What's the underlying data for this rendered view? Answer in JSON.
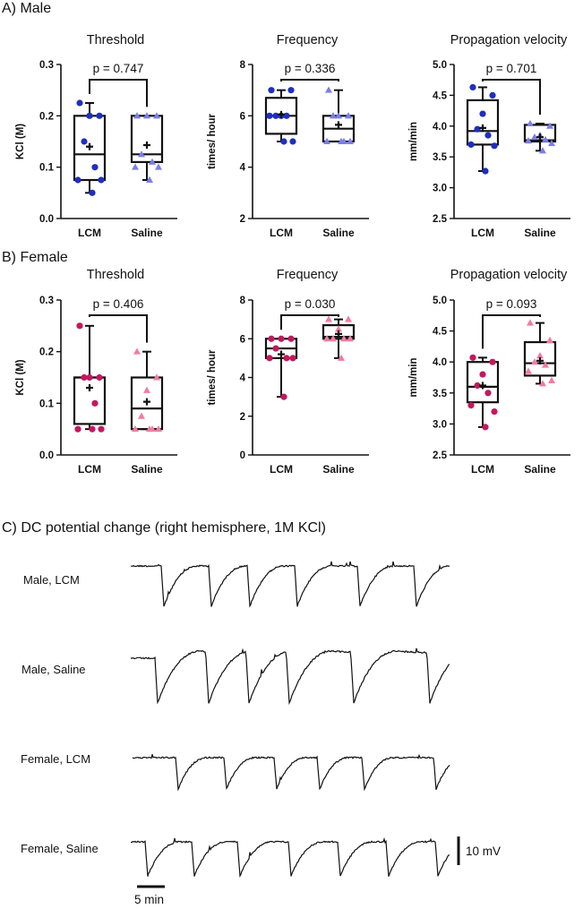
{
  "sections": {
    "a": "A) Male",
    "b": "B) Female",
    "c": "C) DC potential change (right hemisphere, 1M KCl)"
  },
  "colors": {
    "male_circle": "#1f2fbf",
    "male_triangle": "#7b7fe6",
    "female_circle": "#c3185e",
    "female_triangle": "#f07ca3",
    "line": "#111111"
  },
  "chart_data": [
    {
      "id": "male-threshold",
      "type": "boxplot",
      "section": "A) Male",
      "title": "Threshold",
      "ylabel": "KCl (M)",
      "ylim": [
        0,
        0.3
      ],
      "yticks": [
        0.0,
        0.1,
        0.2,
        0.3
      ],
      "ytick_labels": [
        "0.0",
        "0.1",
        "0.2",
        "0.3"
      ],
      "categories": [
        "LCM",
        "Saline"
      ],
      "p_value": "p = 0.747",
      "groups": [
        {
          "name": "LCM",
          "min": 0.05,
          "q1": 0.075,
          "median": 0.125,
          "q3": 0.2,
          "max": 0.225,
          "mean": 0.14,
          "points": [
            0.225,
            0.2,
            0.2,
            0.15,
            0.1,
            0.075,
            0.075,
            0.05
          ],
          "marker": "circle"
        },
        {
          "name": "Saline",
          "min": 0.075,
          "q1": 0.11,
          "median": 0.125,
          "q3": 0.2,
          "max": 0.2,
          "mean": 0.143,
          "points": [
            0.2,
            0.2,
            0.2,
            0.125,
            0.11,
            0.1,
            0.1,
            0.075
          ],
          "marker": "triangle"
        }
      ]
    },
    {
      "id": "male-frequency",
      "type": "boxplot",
      "section": "A) Male",
      "title": "Frequency",
      "ylabel": "times/ hour",
      "ylim": [
        2,
        8
      ],
      "yticks": [
        2,
        4,
        6,
        8
      ],
      "ytick_labels": [
        "2",
        "4",
        "6",
        "8"
      ],
      "categories": [
        "LCM",
        "Saline"
      ],
      "p_value": "p = 0.336",
      "groups": [
        {
          "name": "LCM",
          "min": 5,
          "q1": 5.3,
          "median": 6,
          "q3": 6.7,
          "max": 7,
          "mean": 6.05,
          "points": [
            7,
            7,
            6,
            6,
            6,
            6,
            5,
            5
          ],
          "marker": "circle"
        },
        {
          "name": "Saline",
          "min": 5,
          "q1": 5,
          "median": 5.5,
          "q3": 6,
          "max": 7,
          "mean": 5.65,
          "points": [
            7,
            6,
            6,
            6,
            5,
            5,
            5,
            5
          ],
          "marker": "triangle"
        }
      ]
    },
    {
      "id": "male-velocity",
      "type": "boxplot",
      "section": "A) Male",
      "title": "Propagation velocity",
      "ylabel": "mm/min",
      "ylim": [
        2.5,
        5.0
      ],
      "yticks": [
        2.5,
        3.0,
        3.5,
        4.0,
        4.5,
        5.0
      ],
      "ytick_labels": [
        "2.5",
        "3.0",
        "3.5",
        "4.0",
        "4.5",
        "5.0"
      ],
      "categories": [
        "LCM",
        "Saline"
      ],
      "p_value": "p = 0.701",
      "groups": [
        {
          "name": "LCM",
          "min": 3.27,
          "q1": 3.7,
          "median": 3.92,
          "q3": 4.42,
          "max": 4.63,
          "mean": 3.97,
          "points": [
            4.63,
            4.5,
            4.2,
            3.95,
            3.85,
            3.7,
            3.68,
            3.27
          ],
          "marker": "circle"
        },
        {
          "name": "Saline",
          "min": 3.6,
          "q1": 3.75,
          "median": 3.77,
          "q3": 4.02,
          "max": 4.04,
          "mean": 3.82,
          "points": [
            4.04,
            4.0,
            3.85,
            3.82,
            3.78,
            3.76,
            3.72,
            3.6
          ],
          "marker": "triangle"
        }
      ]
    },
    {
      "id": "female-threshold",
      "type": "boxplot",
      "section": "B) Female",
      "title": "Threshold",
      "ylabel": "KCl (M)",
      "ylim": [
        0,
        0.3
      ],
      "yticks": [
        0.0,
        0.1,
        0.2,
        0.3
      ],
      "ytick_labels": [
        "0.0",
        "0.1",
        "0.2",
        "0.3"
      ],
      "categories": [
        "LCM",
        "Saline"
      ],
      "p_value": "p = 0.406",
      "groups": [
        {
          "name": "LCM",
          "min": 0.05,
          "q1": 0.06,
          "median": 0.15,
          "q3": 0.15,
          "max": 0.25,
          "mean": 0.13,
          "points": [
            0.25,
            0.15,
            0.15,
            0.15,
            0.1,
            0.05,
            0.05,
            0.05
          ],
          "marker": "circle"
        },
        {
          "name": "Saline",
          "min": 0.05,
          "q1": 0.05,
          "median": 0.09,
          "q3": 0.15,
          "max": 0.2,
          "mean": 0.103,
          "points": [
            0.2,
            0.15,
            0.125,
            0.075,
            0.05,
            0.05,
            0.05,
            0.05
          ],
          "marker": "triangle"
        }
      ]
    },
    {
      "id": "female-frequency",
      "type": "boxplot",
      "section": "B) Female",
      "title": "Frequency",
      "ylabel": "times/ hour",
      "ylim": [
        0,
        8
      ],
      "yticks": [
        0,
        2,
        4,
        6,
        8
      ],
      "ytick_labels": [
        "0",
        "2",
        "4",
        "6",
        "8"
      ],
      "categories": [
        "LCM",
        "Saline"
      ],
      "p_value": "p = 0.030",
      "groups": [
        {
          "name": "LCM",
          "min": 3,
          "q1": 5,
          "median": 5.5,
          "q3": 6,
          "max": 6,
          "mean": 5.2,
          "points": [
            6,
            6,
            6,
            5.5,
            5,
            5,
            5,
            3
          ],
          "marker": "circle"
        },
        {
          "name": "Saline",
          "min": 5,
          "q1": 6,
          "median": 6.1,
          "q3": 6.7,
          "max": 7,
          "mean": 6.25,
          "points": [
            7,
            7,
            6.5,
            6,
            6,
            6,
            6,
            5
          ],
          "marker": "triangle"
        }
      ]
    },
    {
      "id": "female-velocity",
      "type": "boxplot",
      "section": "B) Female",
      "title": "Propagation velocity",
      "ylabel": "mm/min",
      "ylim": [
        2.5,
        5.0
      ],
      "yticks": [
        2.5,
        3.0,
        3.5,
        4.0,
        4.5,
        5.0
      ],
      "ytick_labels": [
        "2.5",
        "3.0",
        "3.5",
        "4.0",
        "4.5",
        "5.0"
      ],
      "categories": [
        "LCM",
        "Saline"
      ],
      "p_value": "p = 0.093",
      "groups": [
        {
          "name": "LCM",
          "min": 2.95,
          "q1": 3.35,
          "median": 3.6,
          "q3": 4.0,
          "max": 4.07,
          "mean": 3.62,
          "points": [
            4.07,
            4.0,
            3.8,
            3.62,
            3.5,
            3.3,
            3.2,
            2.95
          ],
          "marker": "circle"
        },
        {
          "name": "Saline",
          "min": 3.65,
          "q1": 3.78,
          "median": 3.98,
          "q3": 4.32,
          "max": 4.63,
          "mean": 4.02,
          "points": [
            4.63,
            4.35,
            4.1,
            4.0,
            3.95,
            3.85,
            3.7,
            3.65
          ],
          "marker": "triangle"
        }
      ]
    }
  ],
  "traces": {
    "title": "C) DC potential change (right hemisphere, 1M KCl)",
    "rows": [
      {
        "label": "Male, LCM",
        "n_events": 6
      },
      {
        "label": "Male, Saline",
        "n_events": 6
      },
      {
        "label": "Female, LCM",
        "n_events": 6
      },
      {
        "label": "Female, Saline",
        "n_events": 7
      }
    ],
    "time_scale_label": "5 min",
    "voltage_scale_label": "10 mV"
  }
}
